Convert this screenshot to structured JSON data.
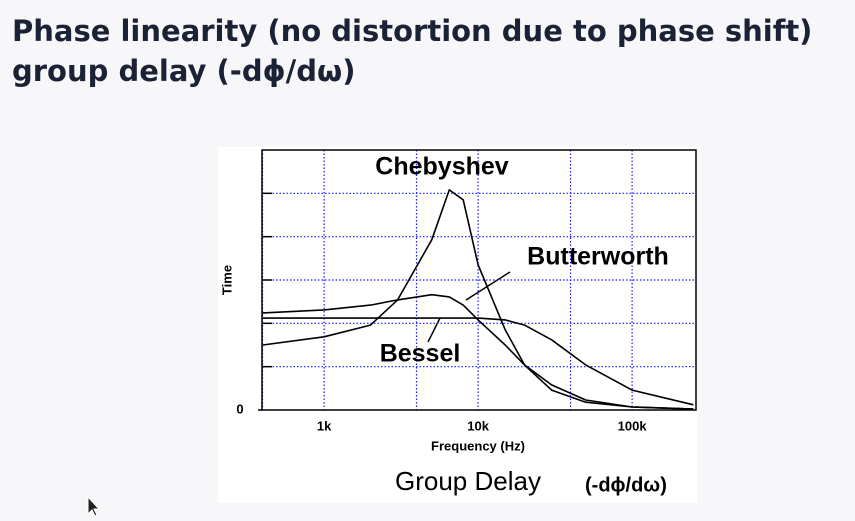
{
  "title": [
    "Phase linearity (no distortion due to phase shift)",
    "group delay (-dϕ/dω)"
  ],
  "chart_data": {
    "type": "line",
    "x": [
      400,
      1000,
      2000,
      3000,
      5000,
      6500,
      8000,
      10000,
      15000,
      20000,
      30000,
      50000,
      100000,
      250000
    ],
    "series": [
      {
        "name": "Chebyshev",
        "color": "#000000",
        "values": [
          1.5,
          1.69,
          1.96,
          2.54,
          3.93,
          5.08,
          4.85,
          3.35,
          1.85,
          1.04,
          0.46,
          0.18,
          0.07,
          0.02
        ]
      },
      {
        "name": "Butterworth",
        "color": "#000000",
        "values": [
          2.24,
          2.31,
          2.42,
          2.54,
          2.66,
          2.61,
          2.42,
          2.08,
          1.5,
          1.04,
          0.58,
          0.23,
          0.07,
          0.02
        ]
      },
      {
        "name": "Bessel",
        "color": "#000000",
        "values": [
          2.12,
          2.12,
          2.12,
          2.12,
          2.12,
          2.12,
          2.12,
          2.12,
          2.08,
          1.96,
          1.62,
          1.04,
          0.46,
          0.12
        ]
      }
    ],
    "xlog": true,
    "xlim": [
      395,
      260000
    ],
    "xticks": [
      {
        "value": 1000,
        "label": "1k"
      },
      {
        "value": 10000,
        "label": "10k"
      },
      {
        "value": 100000,
        "label": "100k"
      }
    ],
    "ylim": [
      0,
      6
    ],
    "yticks": [
      0
    ],
    "grid": true,
    "xlabel": "Frequency (Hz)",
    "ylabel": "Time",
    "caption": "Group Delay",
    "caption_formula": "(-dϕ/dω)"
  }
}
